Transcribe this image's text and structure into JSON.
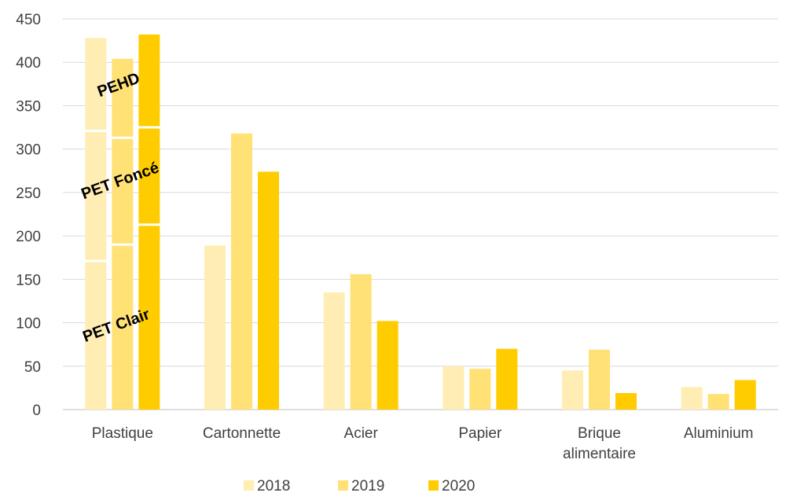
{
  "chart_data": {
    "type": "bar",
    "title": "",
    "xlabel": "",
    "ylabel": "",
    "ylim": [
      0,
      450
    ],
    "yticks": [
      0,
      50,
      100,
      150,
      200,
      250,
      300,
      350,
      400,
      450
    ],
    "grid": true,
    "legend_position": "bottom",
    "categories": [
      "Plastique",
      "Cartonnette",
      "Acier",
      "Papier",
      "Brique alimentaire",
      "Aluminium"
    ],
    "category_lines": [
      [
        "Plastique"
      ],
      [
        "Cartonnette"
      ],
      [
        "Acier"
      ],
      [
        "Papier"
      ],
      [
        "Brique",
        "alimentaire"
      ],
      [
        "Aluminium"
      ]
    ],
    "series": [
      {
        "name": "2018",
        "color": "#FFEDB3",
        "values": [
          428,
          189,
          135,
          50,
          45,
          26
        ]
      },
      {
        "name": "2019",
        "color": "#FFE175",
        "values": [
          404,
          318,
          156,
          47,
          69,
          18
        ]
      },
      {
        "name": "2020",
        "color": "#FFCC00",
        "values": [
          432,
          274,
          102,
          70,
          19,
          34
        ]
      }
    ],
    "plastique_breakdown": {
      "segments": [
        "PET Clair",
        "PET Foncé",
        "PEHD"
      ],
      "cumulative_boundaries": {
        "2018": [
          171,
          321
        ],
        "2019": [
          190,
          313
        ],
        "2020": [
          213,
          325
        ]
      }
    },
    "annotations": [
      "PET Clair",
      "PET Foncé",
      "PEHD"
    ]
  }
}
